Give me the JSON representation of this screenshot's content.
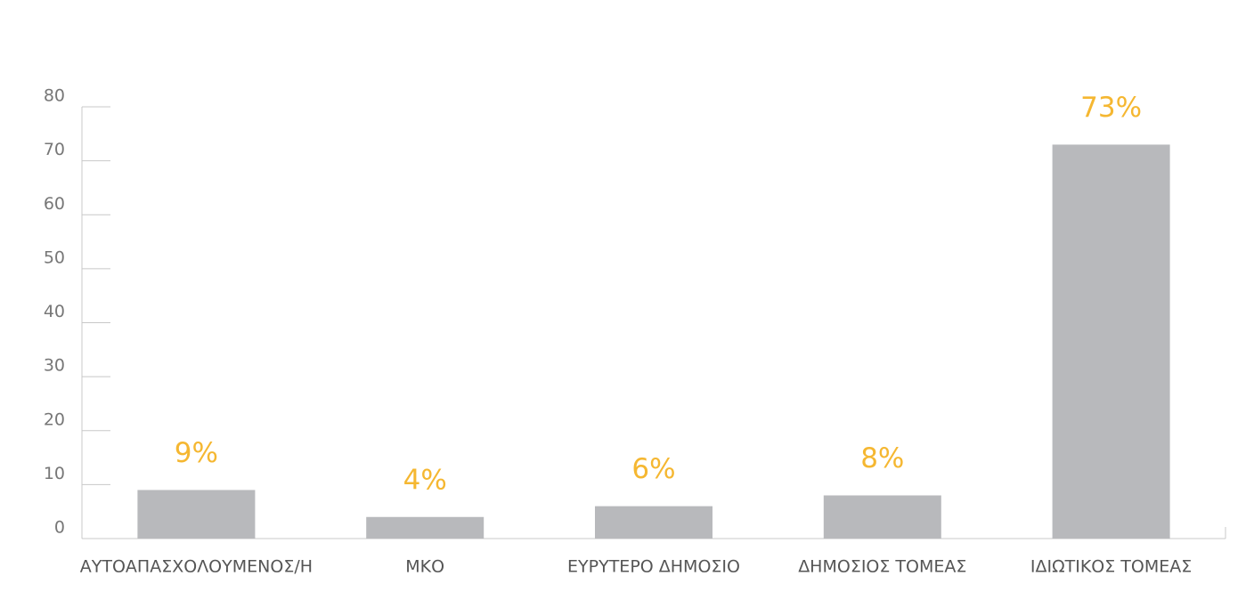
{
  "chart_data": {
    "type": "bar",
    "categories": [
      "ΑΥΤΟΑΠΑΣΧΟΛΟΥΜΕΝΟΣ/Η",
      "ΜΚΟ",
      "ΕΥΡΥΤΕΡΟ ΔΗΜΟΣΙΟ",
      "ΔΗΜΟΣΙΟΣ ΤΟΜΕΑΣ",
      "ΙΔΙΩΤΙΚΟΣ ΤΟΜΕΑΣ"
    ],
    "values": [
      9,
      4,
      6,
      8,
      73
    ],
    "value_labels": [
      "9%",
      "4%",
      "6%",
      "8%",
      "73%"
    ],
    "color": "#b8b9bc",
    "label_color": "#f5b731",
    "ylim": [
      0,
      80
    ],
    "yticks": [
      0,
      10,
      20,
      30,
      40,
      50,
      60,
      70,
      80
    ]
  }
}
